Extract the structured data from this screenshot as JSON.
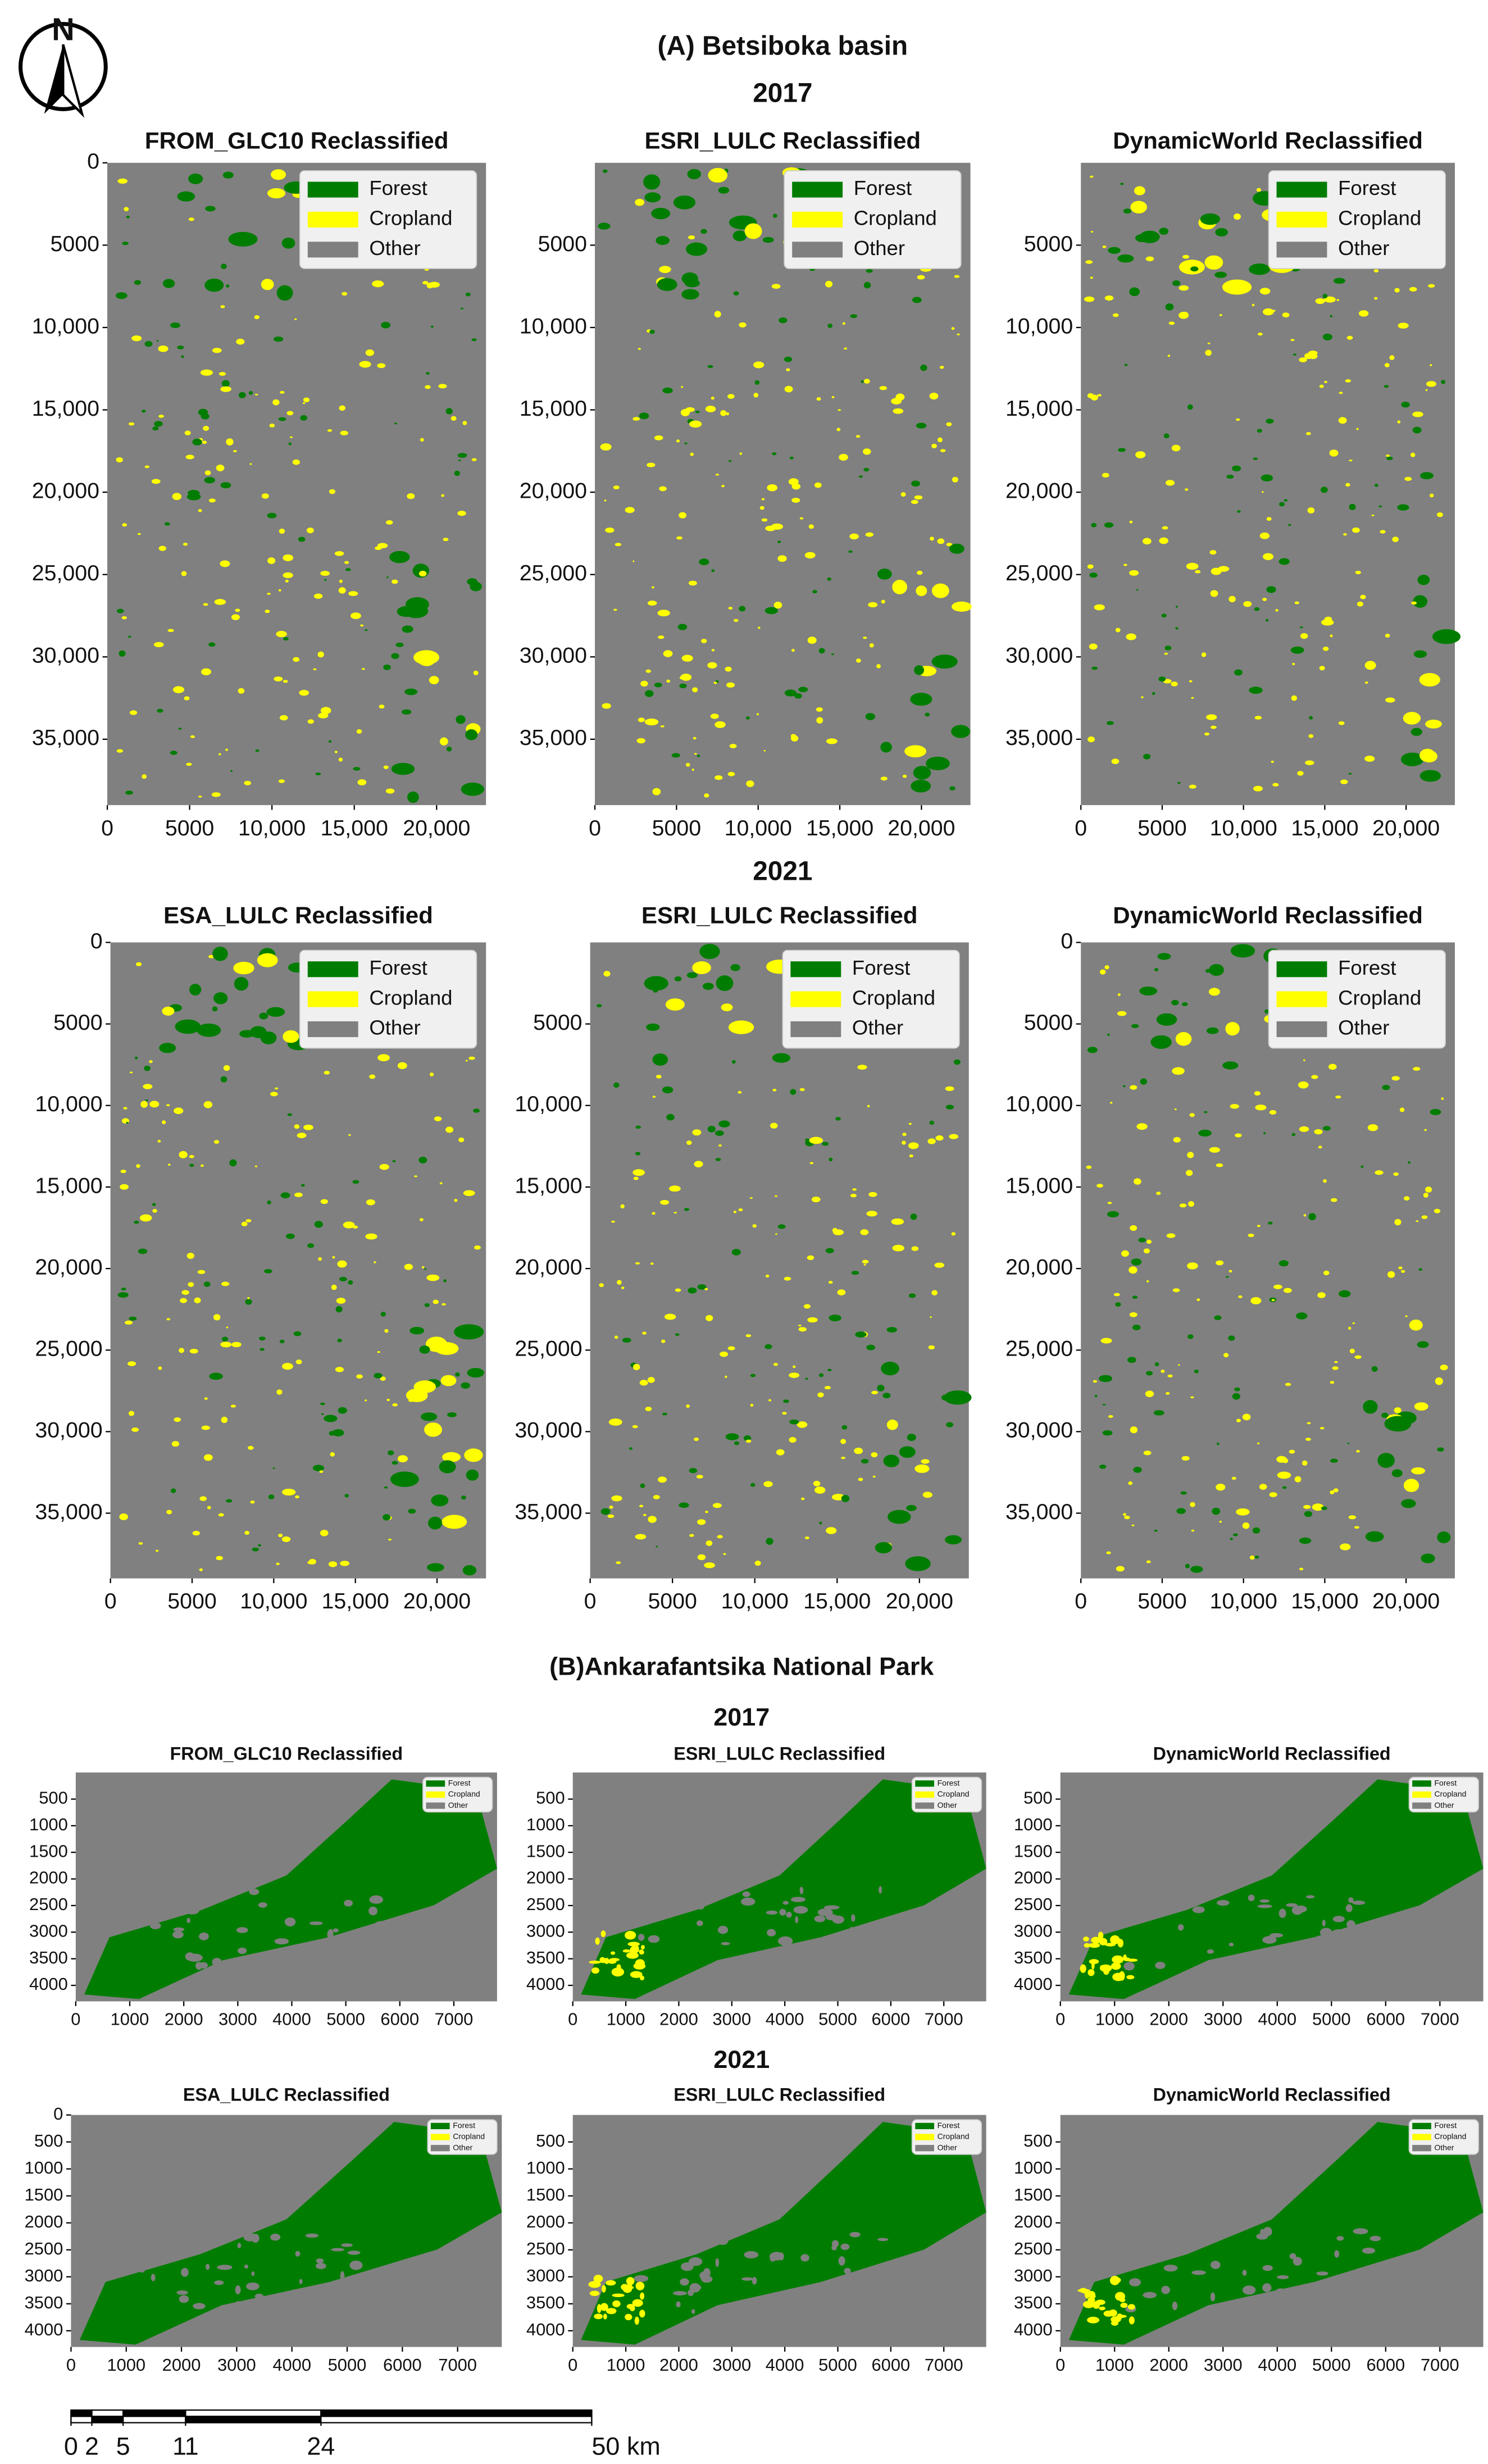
{
  "sections": [
    {
      "title": "(A) Betsiboka basin",
      "rows": [
        {
          "year": "2017",
          "panels": [
            {
              "title": "FROM_GLC10 Reclassified",
              "legend": [
                {
                  "label": "Forest",
                  "color": "#007d00"
                },
                {
                  "label": "Cropland",
                  "color": "#ffff00"
                },
                {
                  "label": "Other",
                  "color": "#808080"
                }
              ],
              "xlim": [
                0,
                23000
              ],
              "ylim": [
                0,
                39000
              ],
              "xticks": [
                0,
                5000,
                {
                  "value": 10000,
                  "label": "10,000"
                },
                {
                  "value": 15000,
                  "label": "15,000"
                },
                {
                  "value": 20000,
                  "label": "20,000"
                }
              ],
              "yticks": [
                0,
                5000,
                {
                  "value": 10000,
                  "label": "10,000"
                },
                {
                  "value": 15000,
                  "label": "15,000"
                },
                {
                  "value": 20000,
                  "label": "20,000"
                },
                {
                  "value": 25000,
                  "label": "25,000"
                },
                {
                  "value": 30000,
                  "label": "30,000"
                },
                {
                  "value": 35000,
                  "label": "35,000"
                }
              ]
            },
            {
              "title": "ESRI_LULC Reclassified",
              "legend": [
                {
                  "label": "Forest",
                  "color": "#007d00"
                },
                {
                  "label": "Cropland",
                  "color": "#ffff00"
                },
                {
                  "label": "Other",
                  "color": "#808080"
                }
              ],
              "xlim": [
                0,
                23000
              ],
              "ylim": [
                0,
                39000
              ],
              "xticks": [
                0,
                5000,
                {
                  "value": 10000,
                  "label": "10,000"
                },
                {
                  "value": 15000,
                  "label": "15,000"
                },
                {
                  "value": 20000,
                  "label": "20,000"
                }
              ],
              "yticks": [
                5000,
                {
                  "value": 10000,
                  "label": "10,000"
                },
                {
                  "value": 15000,
                  "label": "15,000"
                },
                {
                  "value": 20000,
                  "label": "20,000"
                },
                {
                  "value": 25000,
                  "label": "25,000"
                },
                {
                  "value": 30000,
                  "label": "30,000"
                },
                {
                  "value": 35000,
                  "label": "35,000"
                }
              ]
            },
            {
              "title": "DynamicWorld Reclassified",
              "legend": [
                {
                  "label": "Forest",
                  "color": "#007d00"
                },
                {
                  "label": "Cropland",
                  "color": "#ffff00"
                },
                {
                  "label": "Other",
                  "color": "#808080"
                }
              ],
              "xlim": [
                0,
                23000
              ],
              "ylim": [
                0,
                39000
              ],
              "xticks": [
                0,
                5000,
                {
                  "value": 10000,
                  "label": "10,000"
                },
                {
                  "value": 15000,
                  "label": "15,000"
                },
                {
                  "value": 20000,
                  "label": "20,000"
                }
              ],
              "yticks": [
                5000,
                {
                  "value": 10000,
                  "label": "10,000"
                },
                {
                  "value": 15000,
                  "label": "15,000"
                },
                {
                  "value": 20000,
                  "label": "20,000"
                },
                {
                  "value": 25000,
                  "label": "25,000"
                },
                {
                  "value": 30000,
                  "label": "30,000"
                },
                {
                  "value": 35000,
                  "label": "35,000"
                }
              ]
            }
          ]
        },
        {
          "year": "2021",
          "panels": [
            {
              "title": "ESA_LULC Reclassified",
              "legend": [
                {
                  "label": "Forest",
                  "color": "#007d00"
                },
                {
                  "label": "Cropland",
                  "color": "#ffff00"
                },
                {
                  "label": "Other",
                  "color": "#808080"
                }
              ],
              "xlim": [
                0,
                23000
              ],
              "ylim": [
                0,
                39000
              ],
              "xticks": [
                0,
                5000,
                {
                  "value": 10000,
                  "label": "10,000"
                },
                {
                  "value": 15000,
                  "label": "15,000"
                },
                {
                  "value": 20000,
                  "label": "20,000"
                }
              ],
              "yticks": [
                0,
                5000,
                {
                  "value": 10000,
                  "label": "10,000"
                },
                {
                  "value": 15000,
                  "label": "15,000"
                },
                {
                  "value": 20000,
                  "label": "20,000"
                },
                {
                  "value": 25000,
                  "label": "25,000"
                },
                {
                  "value": 30000,
                  "label": "30,000"
                },
                {
                  "value": 35000,
                  "label": "35,000"
                }
              ]
            },
            {
              "title": "ESRI_LULC Reclassified",
              "legend": [
                {
                  "label": "Forest",
                  "color": "#007d00"
                },
                {
                  "label": "Cropland",
                  "color": "#ffff00"
                },
                {
                  "label": "Other",
                  "color": "#808080"
                }
              ],
              "xlim": [
                0,
                23000
              ],
              "ylim": [
                0,
                39000
              ],
              "xticks": [
                0,
                5000,
                {
                  "value": 10000,
                  "label": "10,000"
                },
                {
                  "value": 15000,
                  "label": "15,000"
                },
                {
                  "value": 20000,
                  "label": "20,000"
                }
              ],
              "yticks": [
                5000,
                {
                  "value": 10000,
                  "label": "10,000"
                },
                {
                  "value": 15000,
                  "label": "15,000"
                },
                {
                  "value": 20000,
                  "label": "20,000"
                },
                {
                  "value": 25000,
                  "label": "25,000"
                },
                {
                  "value": 30000,
                  "label": "30,000"
                },
                {
                  "value": 35000,
                  "label": "35,000"
                }
              ]
            },
            {
              "title": "DynamicWorld Reclassified",
              "legend": [
                {
                  "label": "Forest",
                  "color": "#007d00"
                },
                {
                  "label": "Cropland",
                  "color": "#ffff00"
                },
                {
                  "label": "Other",
                  "color": "#808080"
                }
              ],
              "xlim": [
                0,
                23000
              ],
              "ylim": [
                0,
                39000
              ],
              "xticks": [
                0,
                5000,
                {
                  "value": 10000,
                  "label": "10,000"
                },
                {
                  "value": 15000,
                  "label": "15,000"
                },
                {
                  "value": 20000,
                  "label": "20,000"
                }
              ],
              "yticks": [
                0,
                5000,
                {
                  "value": 10000,
                  "label": "10,000"
                },
                {
                  "value": 15000,
                  "label": "15,000"
                },
                {
                  "value": 20000,
                  "label": "20,000"
                },
                {
                  "value": 25000,
                  "label": "25,000"
                },
                {
                  "value": 30000,
                  "label": "30,000"
                },
                {
                  "value": 35000,
                  "label": "35,000"
                }
              ]
            }
          ]
        }
      ]
    },
    {
      "title": "(B)Ankarafantsika National Park",
      "rows": [
        {
          "year": "2017",
          "panels": [
            {
              "title": "FROM_GLC10 Reclassified",
              "legend": [
                {
                  "label": "Forest",
                  "color": "#007d00"
                },
                {
                  "label": "Cropland",
                  "color": "#ffff00"
                },
                {
                  "label": "Other",
                  "color": "#808080"
                }
              ],
              "xlim": [
                0,
                7800
              ],
              "ylim": [
                0,
                4300
              ],
              "xticks": [
                0,
                1000,
                2000,
                3000,
                4000,
                5000,
                6000,
                7000
              ],
              "yticks": [
                500,
                1000,
                1500,
                2000,
                2500,
                3000,
                3500,
                4000
              ]
            },
            {
              "title": "ESRI_LULC Reclassified",
              "legend": [
                {
                  "label": "Forest",
                  "color": "#007d00"
                },
                {
                  "label": "Cropland",
                  "color": "#ffff00"
                },
                {
                  "label": "Other",
                  "color": "#808080"
                }
              ],
              "xlim": [
                0,
                7800
              ],
              "ylim": [
                0,
                4300
              ],
              "xticks": [
                0,
                1000,
                2000,
                3000,
                4000,
                5000,
                6000,
                7000
              ],
              "yticks": [
                500,
                1000,
                1500,
                2000,
                2500,
                3000,
                3500,
                4000
              ]
            },
            {
              "title": "DynamicWorld Reclassified",
              "legend": [
                {
                  "label": "Forest",
                  "color": "#007d00"
                },
                {
                  "label": "Cropland",
                  "color": "#ffff00"
                },
                {
                  "label": "Other",
                  "color": "#808080"
                }
              ],
              "xlim": [
                0,
                7800
              ],
              "ylim": [
                0,
                4300
              ],
              "xticks": [
                0,
                1000,
                2000,
                3000,
                4000,
                5000,
                6000,
                7000
              ],
              "yticks": [
                500,
                1000,
                1500,
                2000,
                2500,
                3000,
                3500,
                4000
              ]
            }
          ]
        },
        {
          "year": "2021",
          "panels": [
            {
              "title": "ESA_LULC Reclassified",
              "legend": [
                {
                  "label": "Forest",
                  "color": "#007d00"
                },
                {
                  "label": "Cropland",
                  "color": "#ffff00"
                },
                {
                  "label": "Other",
                  "color": "#808080"
                }
              ],
              "xlim": [
                0,
                7800
              ],
              "ylim": [
                0,
                4300
              ],
              "xticks": [
                0,
                1000,
                2000,
                3000,
                4000,
                5000,
                6000,
                7000
              ],
              "yticks": [
                0,
                500,
                1000,
                1500,
                2000,
                2500,
                3000,
                3500,
                4000
              ]
            },
            {
              "title": "ESRI_LULC Reclassified",
              "legend": [
                {
                  "label": "Forest",
                  "color": "#007d00"
                },
                {
                  "label": "Cropland",
                  "color": "#ffff00"
                },
                {
                  "label": "Other",
                  "color": "#808080"
                }
              ],
              "xlim": [
                0,
                7800
              ],
              "ylim": [
                0,
                4300
              ],
              "xticks": [
                0,
                1000,
                2000,
                3000,
                4000,
                5000,
                6000,
                7000
              ],
              "yticks": [
                500,
                1000,
                1500,
                2000,
                2500,
                3000,
                3500,
                4000
              ]
            },
            {
              "title": "DynamicWorld Reclassified",
              "legend": [
                {
                  "label": "Forest",
                  "color": "#007d00"
                },
                {
                  "label": "Cropland",
                  "color": "#ffff00"
                },
                {
                  "label": "Other",
                  "color": "#808080"
                }
              ],
              "xlim": [
                0,
                7800
              ],
              "ylim": [
                0,
                4300
              ],
              "xticks": [
                0,
                1000,
                2000,
                3000,
                4000,
                5000,
                6000,
                7000
              ],
              "yticks": [
                500,
                1000,
                1500,
                2000,
                2500,
                3000,
                3500,
                4000
              ]
            }
          ]
        }
      ]
    }
  ],
  "north": "N",
  "scale_bar": {
    "ticks": [
      0,
      2,
      5,
      11,
      24,
      {
        "value": 50,
        "label": "50 km"
      }
    ]
  }
}
